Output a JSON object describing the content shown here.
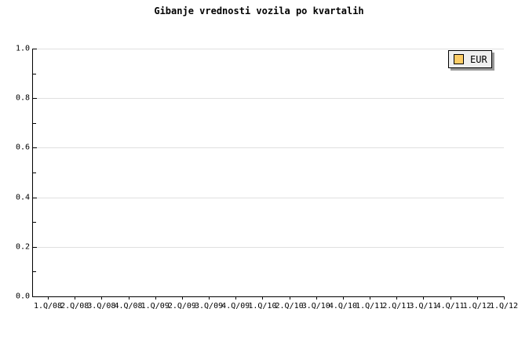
{
  "chart_data": {
    "type": "line",
    "title": "Gibanje vrednosti vozila po kvartalih",
    "categories": [
      "1.Q/08",
      "2.Q/08",
      "3.Q/08",
      "4.Q/08",
      "1.Q/09",
      "2.Q/09",
      "3.Q/09",
      "4.Q/09",
      "1.Q/10",
      "2.Q/10",
      "3.Q/10",
      "4.Q/10",
      "1.Q/11",
      "2.Q/11",
      "3.Q/11",
      "4.Q/11",
      "1.Q/12",
      "1.Q/12"
    ],
    "series": [
      {
        "name": "EUR",
        "color": "#fccc66",
        "values": []
      }
    ],
    "ylim": [
      0.0,
      1.0
    ],
    "y_tick_labels_top_to_bottom": [
      "1.0",
      "0.8",
      "0.6",
      "0.4",
      "0.2",
      "0.0"
    ],
    "y_major_step": 0.2,
    "y_minor_step": 0.1,
    "grid": "horizontal-major",
    "legend_position": "top-right",
    "plot_is_empty": true
  },
  "legend": {
    "label": "EUR",
    "swatch_icon": "series-color-swatch"
  },
  "colors": {
    "background": "#ffffff",
    "axis": "#000000",
    "gridline": "#e0e0e0",
    "text": "#000000",
    "legend_background": "#efefef",
    "legend_border": "#000000",
    "legend_shadow": "#999999",
    "series_eur": "#fccc66"
  }
}
